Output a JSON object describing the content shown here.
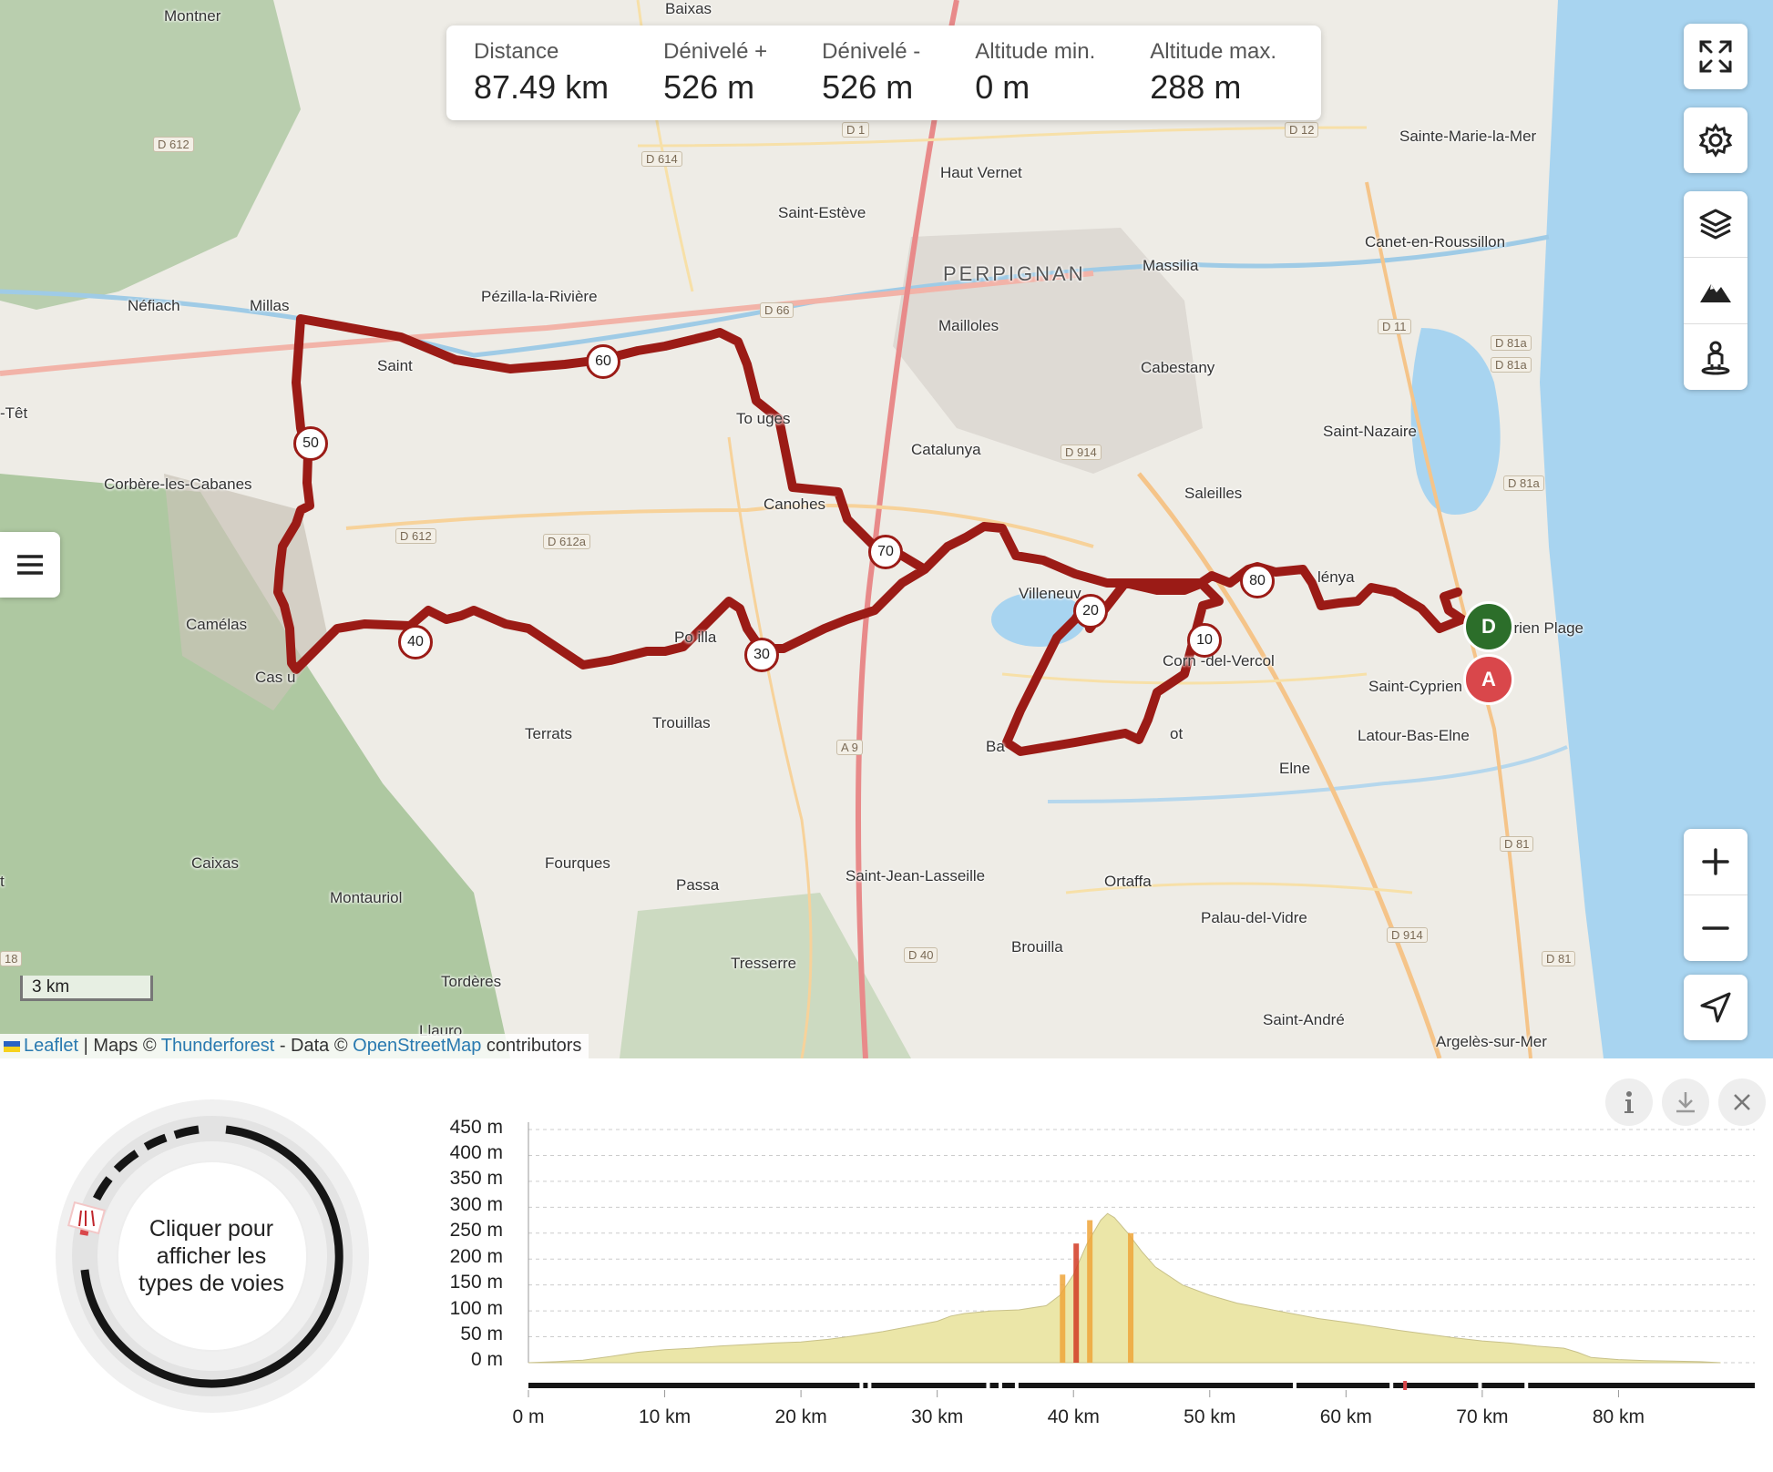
{
  "stats": [
    {
      "label": "Distance",
      "value": "87.49 km"
    },
    {
      "label": "Dénivelé +",
      "value": "526 m"
    },
    {
      "label": "Dénivelé -",
      "value": "526 m"
    },
    {
      "label": "Altitude min.",
      "value": "0 m"
    },
    {
      "label": "Altitude max.",
      "value": "288 m"
    }
  ],
  "places": {
    "montner": "Montner",
    "baixas": "Baixas",
    "haut_vernet": "Haut Vernet",
    "sainte_marie": "Sainte-Marie-la-Mer",
    "saint_esteve": "Saint-Estève",
    "canet": "Canet-en-Roussillon",
    "perpignan": "PERPIGNAN",
    "massilia": "Massilia",
    "nefiach": "Néfiach",
    "millas": "Millas",
    "pezilla": "Pézilla-la-Rivière",
    "mailloles": "Mailloles",
    "cabestany": "Cabestany",
    "saint_nazaire": "Saint-Nazaire",
    "tet": "-Têt",
    "toulouges": "To      uges",
    "saint_feliu": "Saint",
    "catalunya": "Catalunya",
    "corbere": "Corbère-les-Cabanes",
    "canohes": "Canohes",
    "saleilles": "Saleilles",
    "villeneuve": "Villeneuv",
    "alenya": "lénya",
    "saint_cyprien_plage": "prien Plage",
    "camelas": "Camélas",
    "ponteilla": "Po       illa",
    "corneilla": "Corn      -del-Vercol",
    "saint_cyprien": "Saint-Cyprien",
    "castelnou": "Cas        u",
    "thuir": "",
    "terrats": "Terrats",
    "trouillas": "Trouillas",
    "bages": "Ba",
    "montescot": "ot",
    "latour": "Latour-Bas-Elne",
    "elne": "Elne",
    "caixas": "Caixas",
    "fourques": "Fourques",
    "saint_jean": "Saint-Jean-Lasseille",
    "ortaffa": "Ortaffa",
    "montauriol": "Montauriol",
    "passa": "Passa",
    "palau": "Palau-del-Vidre",
    "brouilla": "Brouilla",
    "tresserre": "Tresserre",
    "tordere": "Tordères",
    "saint_andre": "Saint-André",
    "argeles": "Argelès-sur-Mer",
    "llauro": "Llauro",
    "left_t": "t"
  },
  "roads": {
    "d612_a": "D 612",
    "d614": "D 614",
    "d1": "D 1",
    "d12": "D 12",
    "d66": "D 66",
    "d11": "D 11",
    "d81a_1": "D 81a",
    "d81a_2": "D 81a",
    "d914_a": "D 914",
    "d81a_3": "D 81a",
    "d612_b": "D 612",
    "d612a": "D 612a",
    "a9": "A 9",
    "d81": "D 81",
    "d914_b": "D 914",
    "d40": "D 40",
    "d81_b": "D 81",
    "d18": "18"
  },
  "km_markers": [
    "10",
    "20",
    "30",
    "40",
    "50",
    "60",
    "70",
    "80"
  ],
  "pins": {
    "start": "D",
    "end": "A"
  },
  "scale": "3 km",
  "attribution": {
    "leaflet": "Leaflet",
    "sep1": " | Maps © ",
    "thunderforest": "Thunderforest",
    "sep2": " - Data © ",
    "osm": "OpenStreetMap",
    "contrib": " contributors"
  },
  "way_types_text": [
    "Cliquer pour",
    "afficher les",
    "types de voies"
  ],
  "chart_data": {
    "type": "area",
    "title": "",
    "xlabel": "",
    "ylabel": "",
    "x_ticks": [
      "0 m",
      "10 km",
      "20 km",
      "30 km",
      "40 km",
      "50 km",
      "60 km",
      "70 km",
      "80 km"
    ],
    "y_ticks": [
      "450 m",
      "400 m",
      "350 m",
      "300 m",
      "250 m",
      "200 m",
      "150 m",
      "100 m",
      "50 m",
      "0 m"
    ],
    "xlim": [
      0,
      87.49
    ],
    "ylim": [
      0,
      450
    ],
    "x": [
      0,
      2,
      4,
      6,
      8,
      10,
      12,
      14,
      16,
      18,
      20,
      22,
      24,
      26,
      28,
      30,
      31,
      32,
      34,
      36,
      38,
      39,
      40,
      41,
      42,
      42.5,
      43,
      44,
      45,
      46,
      48,
      50,
      52,
      54,
      56,
      58,
      60,
      62,
      64,
      66,
      68,
      70,
      72,
      74,
      76,
      77,
      78,
      80,
      82,
      84,
      86,
      87.49
    ],
    "values": [
      0,
      2,
      5,
      12,
      20,
      25,
      28,
      32,
      35,
      38,
      40,
      45,
      52,
      60,
      70,
      80,
      90,
      95,
      100,
      102,
      110,
      130,
      170,
      230,
      275,
      288,
      280,
      250,
      215,
      185,
      150,
      130,
      115,
      105,
      95,
      85,
      78,
      70,
      62,
      55,
      48,
      42,
      38,
      32,
      28,
      20,
      10,
      6,
      4,
      3,
      2,
      0
    ]
  }
}
